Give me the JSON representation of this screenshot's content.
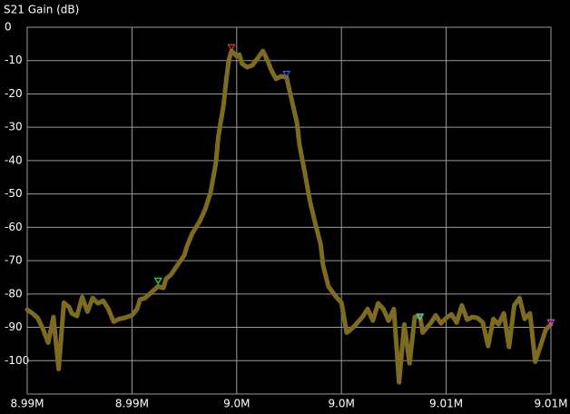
{
  "chart_data": {
    "type": "line",
    "title": "S21 Gain (dB)",
    "background": "#000000",
    "grid": true,
    "grid_color": "#9a9a9a",
    "text_color": "#ffffff",
    "xlim": [
      8.99,
      9.01
    ],
    "xticks": [
      {
        "value": 8.99,
        "label": "8.99M"
      },
      {
        "value": 8.994,
        "label": "8.99M"
      },
      {
        "value": 8.998,
        "label": "9.0M"
      },
      {
        "value": 9.002,
        "label": "9.0M"
      },
      {
        "value": 9.006,
        "label": "9.01M"
      },
      {
        "value": 9.01,
        "label": "9.01M"
      }
    ],
    "ylim": [
      -110,
      0
    ],
    "yticks": [
      0,
      -10,
      -20,
      -30,
      -40,
      -50,
      -60,
      -70,
      -80,
      -90,
      -100
    ],
    "series": [
      {
        "color": "#7d6c1f",
        "x": [
          8.99,
          8.9902,
          8.9904,
          8.9906,
          8.9908,
          8.991,
          8.9912,
          8.9914,
          8.9916,
          8.9917,
          8.9919,
          8.9921,
          8.9923,
          8.9925,
          8.9927,
          8.9929,
          8.9931,
          8.9933,
          8.9935,
          8.9937,
          8.994,
          8.9942,
          8.9943,
          8.9945,
          8.9947,
          8.995,
          8.9952,
          8.9953,
          8.9955,
          8.9958,
          8.996,
          8.9961,
          8.9963,
          8.9966,
          8.9968,
          8.997,
          8.9972,
          8.9973,
          8.9975,
          8.9976,
          8.9977,
          8.9978,
          8.998,
          8.9981,
          8.9982,
          8.9984,
          8.9986,
          8.9988,
          8.999,
          8.9992,
          8.9993,
          8.9995,
          8.9997,
          8.9999,
          9.0001,
          9.0003,
          9.0004,
          9.0006,
          9.0008,
          9.001,
          9.0012,
          9.0013,
          9.0015,
          9.0018,
          9.002,
          9.0022,
          9.0023,
          9.0025,
          9.0028,
          9.003,
          9.0032,
          9.0034,
          9.0036,
          9.0038,
          9.004,
          9.0042,
          9.0044,
          9.0046,
          9.0048,
          9.005,
          9.0051,
          9.0054,
          9.0056,
          9.0058,
          9.006,
          9.0062,
          9.0064,
          9.0066,
          9.0068,
          9.007,
          9.0072,
          9.0074,
          9.0076,
          9.0078,
          9.008,
          9.0082,
          9.0084,
          9.0086,
          9.0088,
          9.009,
          9.0092,
          9.0094,
          9.0096,
          9.0098,
          9.01
        ],
        "values": [
          -84.7,
          -85.8,
          -87.2,
          -90.5,
          -94.6,
          -86.9,
          -102.5,
          -82.6,
          -83.9,
          -85.8,
          -86.6,
          -80.9,
          -85.3,
          -81.2,
          -82.8,
          -82.0,
          -84.5,
          -88.3,
          -87.5,
          -87.2,
          -86.4,
          -84.5,
          -81.7,
          -81.2,
          -79.8,
          -77.7,
          -78.2,
          -75.5,
          -74.1,
          -70.6,
          -68.4,
          -65.7,
          -61.9,
          -58.0,
          -54.5,
          -49.6,
          -40.9,
          -32.7,
          -23.2,
          -15.8,
          -9.8,
          -7.1,
          -8.7,
          -8.2,
          -10.9,
          -12.0,
          -11.4,
          -9.3,
          -7.1,
          -10.4,
          -12.5,
          -15.5,
          -14.7,
          -15.0,
          -21.8,
          -28.6,
          -35.4,
          -43.6,
          -52.3,
          -58.9,
          -64.9,
          -71.4,
          -77.7,
          -80.9,
          -82.6,
          -91.6,
          -91.0,
          -89.6,
          -86.9,
          -84.5,
          -88.0,
          -82.8,
          -84.5,
          -88.0,
          -84.5,
          -106.5,
          -89.1,
          -100.8,
          -86.9,
          -86.6,
          -91.6,
          -88.8,
          -86.4,
          -88.8,
          -87.2,
          -86.1,
          -88.6,
          -83.4,
          -87.7,
          -86.9,
          -87.2,
          -88.6,
          -95.6,
          -87.5,
          -89.1,
          -85.8,
          -95.9,
          -83.4,
          -81.2,
          -87.5,
          -85.8,
          -100.3,
          -95.6,
          -90.7,
          -89.1
        ]
      }
    ],
    "markers": [
      {
        "x": 8.9978,
        "value": -6.6,
        "color": "#e0402a"
      },
      {
        "x": 8.9999,
        "value": -14.6,
        "color": "#3a5cf0"
      },
      {
        "x": 8.995,
        "value": -76.6,
        "color": "#40e040"
      },
      {
        "x": 9.005,
        "value": -87.4,
        "color": "#40e0d0"
      },
      {
        "x": 9.01,
        "value": -89.1,
        "color": "#e040e0"
      }
    ]
  }
}
